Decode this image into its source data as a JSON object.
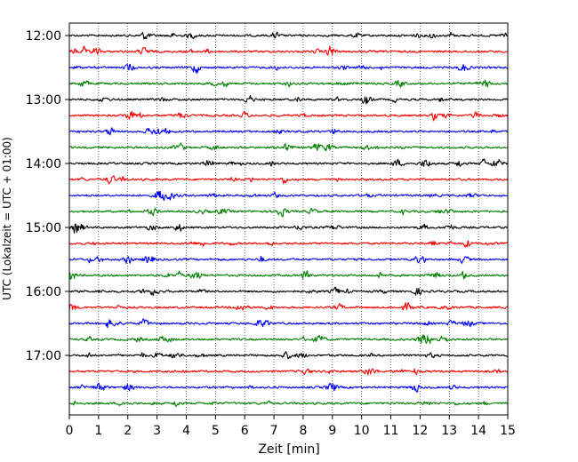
{
  "chart_data": {
    "type": "line",
    "title": "",
    "xlabel": "Zeit  [min]",
    "ylabel": "UTC (Lokalzeit = UTC + 01:00)",
    "xlim": [
      0,
      15
    ],
    "x_ticks": [
      "0",
      "1",
      "2",
      "3",
      "4",
      "5",
      "6",
      "7",
      "8",
      "9",
      "10",
      "11",
      "12",
      "13",
      "14",
      "15"
    ],
    "y_ticks": [
      "12:00",
      "13:00",
      "14:00",
      "15:00",
      "16:00",
      "17:00"
    ],
    "grid": "vertical dotted at each minute",
    "trace_interval_min": 15,
    "trace_start": "12:00",
    "trace_count": 24,
    "trace_colors": [
      "#000000",
      "#ff0000",
      "#0000ff",
      "#008000"
    ]
  }
}
